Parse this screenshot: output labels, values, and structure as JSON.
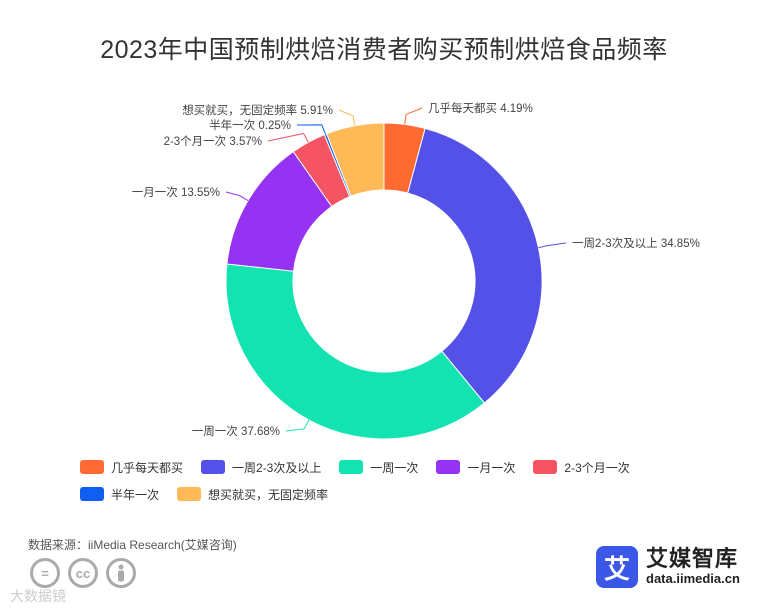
{
  "chart_data": {
    "type": "pie",
    "title": "2023年中国预制烘焙消费者购买预制烘焙食品频率",
    "categories": [
      "几乎每天都买",
      "一周2-3次及以上",
      "一周一次",
      "一月一次",
      "2-3个月一次",
      "半年一次",
      "想买就买，无固定频率"
    ],
    "values": [
      4.19,
      34.85,
      37.68,
      13.55,
      3.57,
      0.25,
      5.91
    ],
    "labels": [
      "几乎每天都买 4.19%",
      "一周2-3次及以上 34.85%",
      "一周一次 37.68%",
      "一月一次 13.55%",
      "2-3个月一次 3.57%",
      "半年一次 0.25%",
      "想买就买，无固定频率 5.91%"
    ],
    "colors": [
      "#ff6a33",
      "#5451e8",
      "#12e3b0",
      "#9633f2",
      "#f55462",
      "#0f5ff2",
      "#ffb957"
    ],
    "donut": true,
    "legend_position": "bottom"
  },
  "source_text": "数据来源：iiMedia Research(艾媒咨询)",
  "brand": {
    "logo_char": "艾",
    "name": "艾媒智库",
    "url": "data.iimedia.cn"
  },
  "license_icons": [
    "equals-icon",
    "cc-icon",
    "person-icon"
  ],
  "watermark_text": "大数据镜"
}
